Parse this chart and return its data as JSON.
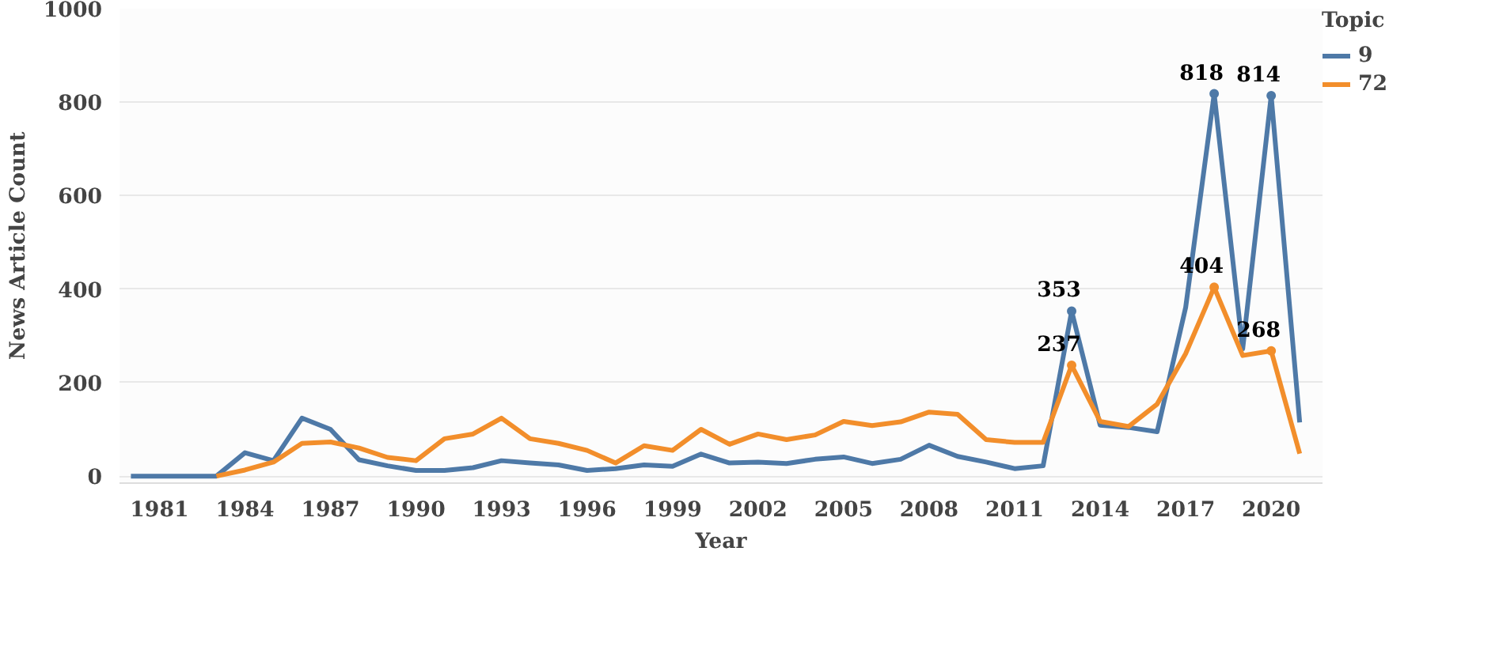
{
  "chart_data": {
    "type": "line",
    "xlabel": "Year",
    "ylabel": "News Article Count",
    "legend_title": "Topic",
    "x": [
      1980,
      1981,
      1982,
      1983,
      1984,
      1985,
      1986,
      1987,
      1988,
      1989,
      1990,
      1991,
      1992,
      1993,
      1994,
      1995,
      1996,
      1997,
      1998,
      1999,
      2000,
      2001,
      2002,
      2003,
      2004,
      2005,
      2006,
      2007,
      2008,
      2009,
      2010,
      2011,
      2012,
      2013,
      2014,
      2015,
      2016,
      2017,
      2018,
      2019,
      2020,
      2021
    ],
    "series": [
      {
        "name": "9",
        "color": "#4e79a7",
        "values": [
          0,
          0,
          0,
          0,
          50,
          33,
          124,
          100,
          35,
          22,
          12,
          12,
          18,
          33,
          28,
          24,
          12,
          16,
          24,
          21,
          47,
          28,
          30,
          27,
          36,
          41,
          27,
          36,
          66,
          42,
          30,
          16,
          22,
          353,
          109,
          104,
          95,
          361,
          818,
          272,
          814,
          115
        ],
        "value_labels": [
          null,
          null,
          null,
          null,
          null,
          null,
          null,
          null,
          null,
          null,
          null,
          null,
          null,
          null,
          null,
          null,
          null,
          null,
          null,
          null,
          null,
          null,
          null,
          null,
          null,
          null,
          null,
          null,
          null,
          null,
          null,
          null,
          null,
          "353",
          null,
          null,
          null,
          null,
          "818",
          null,
          "814",
          null
        ]
      },
      {
        "name": "72",
        "color": "#f28e2b",
        "values": [
          null,
          null,
          null,
          0,
          13,
          30,
          70,
          73,
          60,
          40,
          33,
          80,
          90,
          124,
          80,
          70,
          55,
          28,
          65,
          55,
          100,
          68,
          90,
          78,
          88,
          117,
          108,
          116,
          137,
          132,
          78,
          72,
          72,
          237,
          117,
          106,
          154,
          262,
          404,
          258,
          268,
          48
        ],
        "value_labels": [
          null,
          null,
          null,
          null,
          null,
          null,
          null,
          null,
          null,
          null,
          null,
          null,
          null,
          null,
          null,
          null,
          null,
          null,
          null,
          null,
          null,
          null,
          null,
          null,
          null,
          null,
          null,
          null,
          null,
          null,
          null,
          null,
          null,
          "237",
          null,
          null,
          null,
          null,
          "404",
          null,
          "268",
          null
        ]
      }
    ],
    "xlim": [
      1979.6,
      2021.8
    ],
    "xticks": [
      1981,
      1984,
      1987,
      1990,
      1993,
      1996,
      1999,
      2002,
      2005,
      2008,
      2011,
      2014,
      2017,
      2020
    ],
    "ylim": [
      -15,
      1000
    ],
    "yticks": [
      0,
      200,
      400,
      600,
      800,
      1000
    ],
    "grid": "y",
    "legend": "top right"
  }
}
